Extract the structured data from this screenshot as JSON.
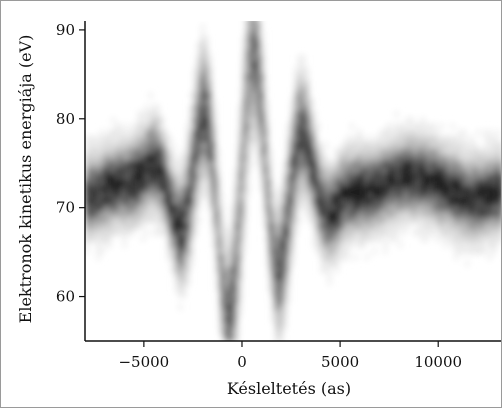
{
  "chart_data": {
    "type": "heatmap",
    "xlabel": "Késleltetés (as)",
    "ylabel": "Elektronok kinetikus energiája (eV)",
    "xlim": [
      -8000,
      13200
    ],
    "ylim": [
      55,
      91
    ],
    "x_ticks": [
      {
        "value": -5000,
        "label": "−5000"
      },
      {
        "value": 0,
        "label": "0"
      },
      {
        "value": 5000,
        "label": "5000"
      },
      {
        "value": 10000,
        "label": "10000"
      }
    ],
    "y_ticks": [
      {
        "value": 60,
        "label": "60"
      },
      {
        "value": 70,
        "label": "70"
      },
      {
        "value": 80,
        "label": "80"
      },
      {
        "value": 90,
        "label": "90"
      }
    ],
    "colormap": [
      "#ffffff",
      "#1a1a1a"
    ],
    "baseline_energy_eV": 72,
    "streaking_oscillation_period_as": 2600,
    "streaking_max_shift_eV": 15,
    "grid": false,
    "legend": "none"
  }
}
